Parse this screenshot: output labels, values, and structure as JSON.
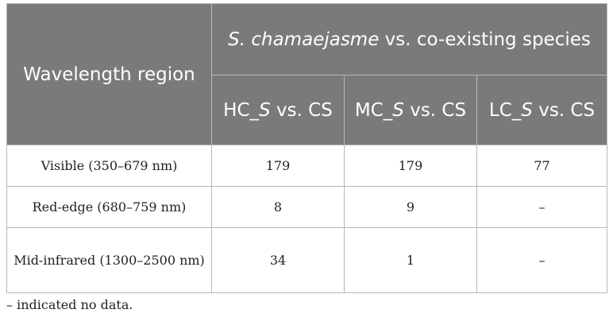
{
  "table": {
    "header": {
      "wavelength_region": "Wavelength region",
      "group_italic": "S. chamaejasme",
      "group_rest": " vs. co-existing species",
      "columns": [
        {
          "prefix": "HC_",
          "italic": "S",
          "suffix": " vs. CS"
        },
        {
          "prefix": "MC_",
          "italic": "S",
          "suffix": " vs. CS"
        },
        {
          "prefix": "LC_",
          "italic": "S",
          "suffix": " vs. CS"
        }
      ]
    },
    "rows": [
      {
        "region": "Visible (350–679 nm)",
        "values": [
          "179",
          "179",
          "77"
        ]
      },
      {
        "region": "Red-edge (680–759 nm)",
        "values": [
          "8",
          "9",
          "–"
        ]
      },
      {
        "region": "Mid-infrared (1300–2500 nm)",
        "values": [
          "34",
          "1",
          "–"
        ]
      }
    ]
  },
  "footnote": "– indicated no data."
}
